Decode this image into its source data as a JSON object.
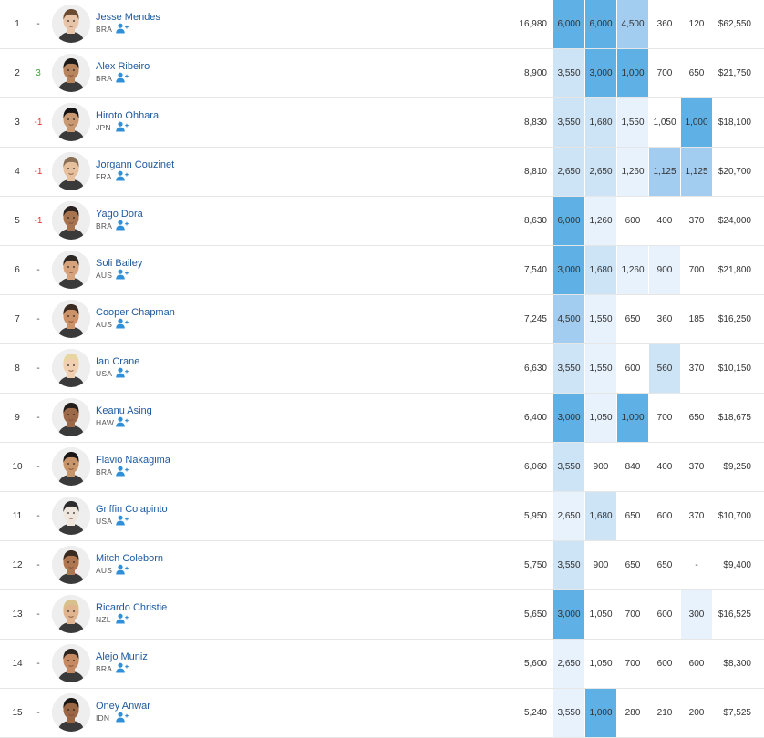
{
  "rankings": [
    {
      "rank": "1",
      "change": "-",
      "change_dir": "none",
      "name": "Jesse Mendes",
      "nat": "BRA",
      "points": "16,980",
      "events": [
        "6,000",
        "6,000",
        "4,500",
        "360",
        "120"
      ],
      "levels": [
        4,
        4,
        3,
        0,
        0
      ],
      "prize": "$62,550"
    },
    {
      "rank": "2",
      "change": "3",
      "change_dir": "up",
      "name": "Alex Ribeiro",
      "nat": "BRA",
      "points": "8,900",
      "events": [
        "3,550",
        "3,000",
        "1,000",
        "700",
        "650"
      ],
      "levels": [
        2,
        4,
        4,
        0,
        0
      ],
      "prize": "$21,750"
    },
    {
      "rank": "3",
      "change": "-1",
      "change_dir": "down",
      "name": "Hiroto Ohhara",
      "nat": "JPN",
      "points": "8,830",
      "events": [
        "3,550",
        "1,680",
        "1,550",
        "1,050",
        "1,000"
      ],
      "levels": [
        2,
        2,
        1,
        0,
        4
      ],
      "prize": "$18,100"
    },
    {
      "rank": "4",
      "change": "-1",
      "change_dir": "down",
      "name": "Jorgann Couzinet",
      "nat": "FRA",
      "points": "8,810",
      "events": [
        "2,650",
        "2,650",
        "1,260",
        "1,125",
        "1,125"
      ],
      "levels": [
        2,
        2,
        1,
        3,
        3
      ],
      "prize": "$20,700"
    },
    {
      "rank": "5",
      "change": "-1",
      "change_dir": "down",
      "name": "Yago Dora",
      "nat": "BRA",
      "points": "8,630",
      "events": [
        "6,000",
        "1,260",
        "600",
        "400",
        "370"
      ],
      "levels": [
        4,
        1,
        0,
        0,
        0
      ],
      "prize": "$24,000"
    },
    {
      "rank": "6",
      "change": "-",
      "change_dir": "none",
      "name": "Soli Bailey",
      "nat": "AUS",
      "points": "7,540",
      "events": [
        "3,000",
        "1,680",
        "1,260",
        "900",
        "700"
      ],
      "levels": [
        4,
        2,
        1,
        1,
        0
      ],
      "prize": "$21,800"
    },
    {
      "rank": "7",
      "change": "-",
      "change_dir": "none",
      "name": "Cooper Chapman",
      "nat": "AUS",
      "points": "7,245",
      "events": [
        "4,500",
        "1,550",
        "650",
        "360",
        "185"
      ],
      "levels": [
        3,
        1,
        0,
        0,
        0
      ],
      "prize": "$16,250"
    },
    {
      "rank": "8",
      "change": "-",
      "change_dir": "none",
      "name": "Ian Crane",
      "nat": "USA",
      "points": "6,630",
      "events": [
        "3,550",
        "1,550",
        "600",
        "560",
        "370"
      ],
      "levels": [
        2,
        1,
        0,
        2,
        0
      ],
      "prize": "$10,150"
    },
    {
      "rank": "9",
      "change": "-",
      "change_dir": "none",
      "name": "Keanu Asing",
      "nat": "HAW",
      "points": "6,400",
      "events": [
        "3,000",
        "1,050",
        "1,000",
        "700",
        "650"
      ],
      "levels": [
        4,
        1,
        4,
        0,
        0
      ],
      "prize": "$18,675"
    },
    {
      "rank": "10",
      "change": "-",
      "change_dir": "none",
      "name": "Flavio Nakagima",
      "nat": "BRA",
      "points": "6,060",
      "events": [
        "3,550",
        "900",
        "840",
        "400",
        "370"
      ],
      "levels": [
        2,
        0,
        0,
        0,
        0
      ],
      "prize": "$9,250"
    },
    {
      "rank": "11",
      "change": "-",
      "change_dir": "none",
      "name": "Griffin Colapinto",
      "nat": "USA",
      "points": "5,950",
      "events": [
        "2,650",
        "1,680",
        "650",
        "600",
        "370"
      ],
      "levels": [
        1,
        2,
        0,
        0,
        0
      ],
      "prize": "$10,700"
    },
    {
      "rank": "12",
      "change": "-",
      "change_dir": "none",
      "name": "Mitch Coleborn",
      "nat": "AUS",
      "points": "5,750",
      "events": [
        "3,550",
        "900",
        "650",
        "650",
        "-"
      ],
      "levels": [
        2,
        0,
        0,
        0,
        0
      ],
      "prize": "$9,400"
    },
    {
      "rank": "13",
      "change": "-",
      "change_dir": "none",
      "name": "Ricardo Christie",
      "nat": "NZL",
      "points": "5,650",
      "events": [
        "3,000",
        "1,050",
        "700",
        "600",
        "300"
      ],
      "levels": [
        4,
        0,
        0,
        0,
        1
      ],
      "prize": "$16,525"
    },
    {
      "rank": "14",
      "change": "-",
      "change_dir": "none",
      "name": "Alejo Muniz",
      "nat": "BRA",
      "points": "5,600",
      "events": [
        "2,650",
        "1,050",
        "700",
        "600",
        "600"
      ],
      "levels": [
        1,
        0,
        0,
        0,
        0
      ],
      "prize": "$8,300"
    },
    {
      "rank": "15",
      "change": "-",
      "change_dir": "none",
      "name": "Oney Anwar",
      "nat": "IDN",
      "points": "5,240",
      "events": [
        "3,550",
        "1,000",
        "280",
        "210",
        "200"
      ],
      "levels": [
        1,
        4,
        0,
        0,
        0
      ],
      "prize": "$7,525"
    }
  ],
  "skin_tones": [
    "#e8c4a8",
    "#b8845e",
    "#c99a72",
    "#e6c09c",
    "#a87450",
    "#d6a37c",
    "#cc9268",
    "#f0d0b0",
    "#9c6a48",
    "#c8946a",
    "#efe7de",
    "#b07650",
    "#e0b48e",
    "#c58a62",
    "#9a6644"
  ],
  "hair_tones": [
    "#6a4a30",
    "#1e1a18",
    "#151313",
    "#8a6e56",
    "#2a2220",
    "#2e2824",
    "#3a2c22",
    "#e8d6a0",
    "#221c1a",
    "#1a1616",
    "#2b2b2b",
    "#3a2a20",
    "#d8c08a",
    "#2c2420",
    "#1c1816"
  ],
  "colors": {
    "link": "#1e5aa0",
    "follow_icon": "#2f8fd8",
    "up": "#3aa533",
    "down": "#e0312e"
  },
  "icons": {
    "follow": "add-user-icon"
  }
}
